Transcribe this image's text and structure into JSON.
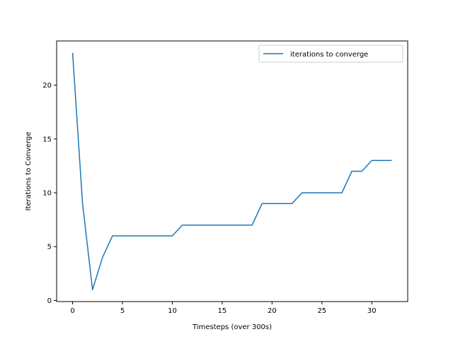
{
  "chart_data": {
    "type": "line",
    "title": "",
    "xlabel": "Timesteps (over 300s)",
    "ylabel": "Iterations to Converge",
    "xlim": [
      -1.6,
      33.6
    ],
    "ylim": [
      -0.1,
      24.1
    ],
    "xticks": [
      0,
      5,
      10,
      15,
      20,
      25,
      30
    ],
    "yticks": [
      0,
      5,
      10,
      15,
      20
    ],
    "grid": false,
    "legend_position": "top-right",
    "series": [
      {
        "name": "iterations to converge",
        "color": "#1f77b4",
        "x": [
          0,
          1,
          2,
          3,
          4,
          5,
          6,
          7,
          8,
          9,
          10,
          11,
          12,
          13,
          14,
          15,
          16,
          17,
          18,
          19,
          20,
          21,
          22,
          23,
          24,
          25,
          26,
          27,
          28,
          29,
          30,
          31,
          32
        ],
        "y": [
          23,
          9,
          1,
          4,
          6,
          6,
          6,
          6,
          6,
          6,
          6,
          7,
          7,
          7,
          7,
          7,
          7,
          7,
          7,
          9,
          9,
          9,
          9,
          10,
          10,
          10,
          10,
          10,
          12,
          12,
          13,
          13,
          13
        ]
      }
    ]
  }
}
